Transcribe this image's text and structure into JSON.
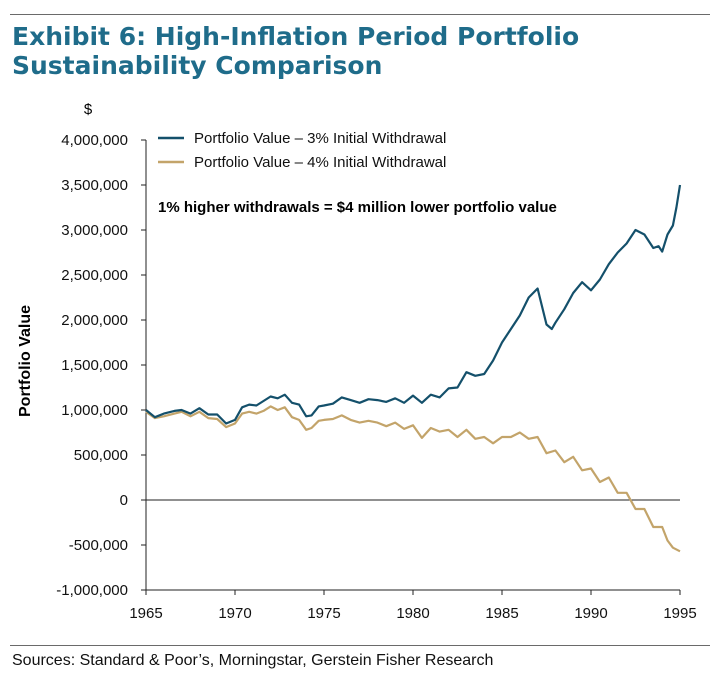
{
  "header": {
    "title_line1": "Exhibit 6: High-Inflation Period Portfolio",
    "title_line2": "Sustainability Comparison"
  },
  "footer": {
    "source": "Sources: Standard & Poor’s, Morningstar, Gerstein Fisher Research"
  },
  "colors": {
    "series_3pct": "#14506b",
    "series_4pct": "#c3a46a",
    "title": "#1f6c8a",
    "axis": "#222222"
  },
  "chart_data": {
    "type": "line",
    "title": "Exhibit 6: High-Inflation Period Portfolio Sustainability Comparison",
    "ylabel": "Portfolio Value",
    "yunit": "$",
    "xlabel": "",
    "xlim": [
      1965,
      1995
    ],
    "ylim": [
      -1000000,
      4000000
    ],
    "xticks": [
      1965,
      1970,
      1975,
      1980,
      1985,
      1990,
      1995
    ],
    "yticks": [
      -1000000,
      -500000,
      0,
      500000,
      1000000,
      1500000,
      2000000,
      2500000,
      3000000,
      3500000,
      4000000
    ],
    "ytick_labels": [
      "-1,000,000",
      "-500,000",
      "0",
      "500,000",
      "1,000,000",
      "1,500,000",
      "2,000,000",
      "2,500,000",
      "3,000,000",
      "3,500,000",
      "4,000,000"
    ],
    "grid": false,
    "legend": "top-left",
    "annotation": "1% higher withdrawals = $4 million lower portfolio value",
    "series": [
      {
        "name": "Portfolio Value – 3% Initial Withdrawal",
        "x": [
          1965.0,
          1965.5,
          1966.0,
          1966.6,
          1967.0,
          1967.5,
          1968.0,
          1968.5,
          1969.0,
          1969.5,
          1970.0,
          1970.4,
          1970.8,
          1971.2,
          1971.6,
          1972.0,
          1972.4,
          1972.8,
          1973.2,
          1973.6,
          1974.0,
          1974.3,
          1974.7,
          1975.0,
          1975.5,
          1976.0,
          1976.5,
          1977.0,
          1977.5,
          1978.0,
          1978.5,
          1979.0,
          1979.5,
          1980.0,
          1980.5,
          1981.0,
          1981.5,
          1982.0,
          1982.5,
          1983.0,
          1983.5,
          1984.0,
          1984.5,
          1985.0,
          1985.5,
          1986.0,
          1986.5,
          1987.0,
          1987.5,
          1987.8,
          1988.0,
          1988.5,
          1989.0,
          1989.5,
          1990.0,
          1990.5,
          1991.0,
          1991.5,
          1992.0,
          1992.5,
          1993.0,
          1993.5,
          1993.8,
          1994.0,
          1994.3,
          1994.6,
          1994.8,
          1995.0
        ],
        "values": [
          1000000,
          920000,
          960000,
          990000,
          1000000,
          960000,
          1020000,
          950000,
          950000,
          850000,
          890000,
          1030000,
          1060000,
          1050000,
          1100000,
          1150000,
          1130000,
          1170000,
          1080000,
          1060000,
          930000,
          940000,
          1040000,
          1050000,
          1070000,
          1140000,
          1110000,
          1080000,
          1120000,
          1110000,
          1090000,
          1130000,
          1080000,
          1160000,
          1080000,
          1170000,
          1140000,
          1240000,
          1250000,
          1420000,
          1380000,
          1400000,
          1550000,
          1750000,
          1900000,
          2050000,
          2250000,
          2350000,
          1950000,
          1900000,
          1970000,
          2120000,
          2300000,
          2420000,
          2330000,
          2450000,
          2620000,
          2750000,
          2850000,
          3000000,
          2950000,
          2800000,
          2820000,
          2760000,
          2950000,
          3050000,
          3250000,
          3500000
        ]
      },
      {
        "name": "Portfolio Value – 4% Initial Withdrawal",
        "x": [
          1965.0,
          1965.5,
          1966.0,
          1966.6,
          1967.0,
          1967.5,
          1968.0,
          1968.5,
          1969.0,
          1969.5,
          1970.0,
          1970.4,
          1970.8,
          1971.2,
          1971.6,
          1972.0,
          1972.4,
          1972.8,
          1973.2,
          1973.6,
          1974.0,
          1974.3,
          1974.7,
          1975.0,
          1975.5,
          1976.0,
          1976.5,
          1977.0,
          1977.5,
          1978.0,
          1978.5,
          1979.0,
          1979.5,
          1980.0,
          1980.5,
          1981.0,
          1981.5,
          1982.0,
          1982.5,
          1983.0,
          1983.5,
          1984.0,
          1984.5,
          1985.0,
          1985.5,
          1986.0,
          1986.5,
          1987.0,
          1987.5,
          1988.0,
          1988.5,
          1989.0,
          1989.5,
          1990.0,
          1990.5,
          1991.0,
          1991.5,
          1992.0,
          1992.5,
          1993.0,
          1993.5,
          1994.0,
          1994.3,
          1994.6,
          1995.0
        ],
        "values": [
          980000,
          910000,
          930000,
          960000,
          980000,
          930000,
          980000,
          910000,
          900000,
          810000,
          850000,
          960000,
          980000,
          960000,
          990000,
          1040000,
          1000000,
          1030000,
          920000,
          890000,
          780000,
          800000,
          880000,
          890000,
          900000,
          940000,
          890000,
          860000,
          880000,
          860000,
          820000,
          860000,
          790000,
          830000,
          690000,
          800000,
          760000,
          780000,
          700000,
          780000,
          680000,
          700000,
          630000,
          700000,
          700000,
          750000,
          680000,
          700000,
          520000,
          550000,
          420000,
          480000,
          330000,
          350000,
          200000,
          250000,
          80000,
          80000,
          -100000,
          -100000,
          -300000,
          -300000,
          -450000,
          -530000,
          -570000
        ]
      }
    ]
  }
}
